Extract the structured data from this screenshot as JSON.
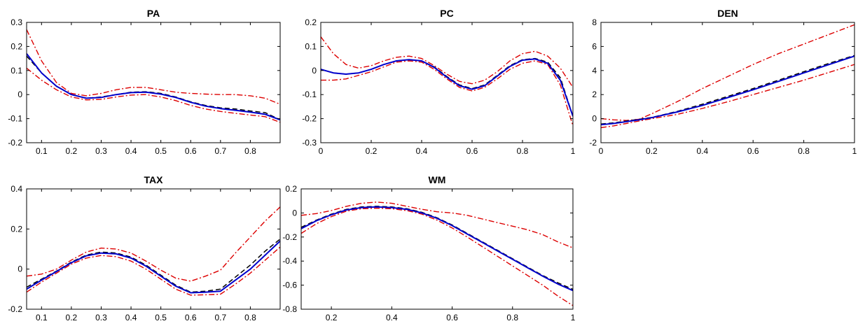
{
  "colors": {
    "estimate": "#0000cc",
    "truth": "#000000",
    "band": "#dd0000"
  },
  "chart_data": [
    {
      "type": "line",
      "title": "PA",
      "xlim": [
        0.05,
        0.9
      ],
      "ylim": [
        -0.2,
        0.3
      ],
      "xticks": [
        0.1,
        0.2,
        0.3,
        0.4,
        0.5,
        0.6,
        0.7,
        0.8
      ],
      "yticks": [
        -0.2,
        -0.1,
        0,
        0.1,
        0.2,
        0.3
      ],
      "xtick_labels": [
        "0.1",
        "0.2",
        "0.3",
        "0.4",
        "0.5",
        "0.6",
        "0.7",
        "0.8"
      ],
      "ytick_labels": [
        "-0.2",
        "-0.1",
        "0",
        "0.1",
        "0.2",
        "0.3"
      ],
      "x": [
        0.05,
        0.1,
        0.15,
        0.2,
        0.25,
        0.3,
        0.35,
        0.4,
        0.45,
        0.5,
        0.55,
        0.6,
        0.65,
        0.7,
        0.75,
        0.8,
        0.85,
        0.9
      ],
      "series": [
        {
          "style": "upper",
          "values": [
            0.27,
            0.14,
            0.05,
            0.005,
            -0.005,
            0.005,
            0.02,
            0.03,
            0.03,
            0.02,
            0.01,
            0.005,
            0.002,
            0.0,
            0.0,
            -0.005,
            -0.015,
            -0.04
          ]
        },
        {
          "style": "truth",
          "values": [
            0.16,
            0.09,
            0.035,
            0.0,
            -0.015,
            -0.01,
            0.0,
            0.01,
            0.012,
            0.005,
            -0.01,
            -0.03,
            -0.045,
            -0.055,
            -0.06,
            -0.068,
            -0.075,
            -0.105
          ]
        },
        {
          "style": "estimate",
          "values": [
            0.17,
            0.09,
            0.035,
            0.0,
            -0.015,
            -0.012,
            0.0,
            0.008,
            0.01,
            0.002,
            -0.012,
            -0.032,
            -0.048,
            -0.058,
            -0.065,
            -0.073,
            -0.082,
            -0.105
          ]
        },
        {
          "style": "lower",
          "values": [
            0.11,
            0.06,
            0.02,
            -0.01,
            -0.022,
            -0.02,
            -0.01,
            -0.002,
            0.0,
            -0.01,
            -0.025,
            -0.045,
            -0.06,
            -0.07,
            -0.078,
            -0.085,
            -0.092,
            -0.115
          ]
        }
      ]
    },
    {
      "type": "line",
      "title": "PC",
      "xlim": [
        0,
        1
      ],
      "ylim": [
        -0.3,
        0.2
      ],
      "xticks": [
        0,
        0.2,
        0.4,
        0.6,
        0.8,
        1
      ],
      "yticks": [
        -0.3,
        -0.2,
        -0.1,
        0,
        0.1,
        0.2
      ],
      "xtick_labels": [
        "0",
        "0.2",
        "0.4",
        "0.6",
        "0.8",
        "1"
      ],
      "ytick_labels": [
        "-0.3",
        "-0.2",
        "-0.1",
        "0",
        "0.1",
        "0.2"
      ],
      "x": [
        0,
        0.05,
        0.1,
        0.15,
        0.2,
        0.25,
        0.3,
        0.35,
        0.4,
        0.45,
        0.5,
        0.55,
        0.6,
        0.65,
        0.7,
        0.75,
        0.8,
        0.85,
        0.9,
        0.95,
        1.0
      ],
      "series": [
        {
          "style": "upper",
          "values": [
            0.14,
            0.07,
            0.025,
            0.01,
            0.02,
            0.04,
            0.055,
            0.06,
            0.05,
            0.02,
            -0.015,
            -0.045,
            -0.055,
            -0.04,
            -0.005,
            0.04,
            0.07,
            0.08,
            0.06,
            0.01,
            -0.07
          ]
        },
        {
          "style": "truth",
          "values": [
            0.005,
            -0.01,
            -0.015,
            -0.01,
            0.005,
            0.025,
            0.04,
            0.045,
            0.04,
            0.015,
            -0.025,
            -0.06,
            -0.075,
            -0.06,
            -0.02,
            0.02,
            0.045,
            0.05,
            0.035,
            -0.03,
            -0.19
          ]
        },
        {
          "style": "estimate",
          "values": [
            0.005,
            -0.01,
            -0.015,
            -0.01,
            0.005,
            0.025,
            0.04,
            0.045,
            0.04,
            0.013,
            -0.028,
            -0.063,
            -0.078,
            -0.063,
            -0.023,
            0.017,
            0.043,
            0.048,
            0.03,
            -0.04,
            -0.19
          ]
        },
        {
          "style": "lower",
          "values": [
            -0.04,
            -0.04,
            -0.035,
            -0.02,
            -0.005,
            0.015,
            0.035,
            0.04,
            0.035,
            0.005,
            -0.035,
            -0.07,
            -0.085,
            -0.07,
            -0.035,
            0.005,
            0.03,
            0.04,
            0.025,
            -0.06,
            -0.23
          ]
        }
      ]
    },
    {
      "type": "line",
      "title": "DEN",
      "xlim": [
        0,
        1
      ],
      "ylim": [
        -2,
        8
      ],
      "xticks": [
        0,
        0.2,
        0.4,
        0.6,
        0.8,
        1
      ],
      "yticks": [
        -2,
        0,
        2,
        4,
        6,
        8
      ],
      "xtick_labels": [
        "0",
        "0.2",
        "0.4",
        "0.6",
        "0.8",
        "1"
      ],
      "ytick_labels": [
        "-2",
        "0",
        "2",
        "4",
        "6",
        "8"
      ],
      "x": [
        0,
        0.05,
        0.1,
        0.15,
        0.2,
        0.3,
        0.4,
        0.5,
        0.6,
        0.7,
        0.8,
        0.9,
        1.0
      ],
      "series": [
        {
          "style": "upper",
          "values": [
            0.0,
            -0.1,
            -0.15,
            -0.05,
            0.4,
            1.4,
            2.5,
            3.5,
            4.5,
            5.4,
            6.2,
            7.0,
            7.8
          ]
        },
        {
          "style": "truth",
          "values": [
            -0.45,
            -0.35,
            -0.2,
            -0.05,
            0.1,
            0.6,
            1.2,
            1.85,
            2.5,
            3.2,
            3.9,
            4.6,
            5.25
          ]
        },
        {
          "style": "estimate",
          "values": [
            -0.5,
            -0.4,
            -0.25,
            -0.1,
            0.08,
            0.55,
            1.1,
            1.75,
            2.4,
            3.1,
            3.8,
            4.5,
            5.2
          ]
        },
        {
          "style": "lower",
          "values": [
            -0.75,
            -0.6,
            -0.4,
            -0.2,
            0.0,
            0.35,
            0.85,
            1.4,
            2.0,
            2.6,
            3.2,
            3.85,
            4.5
          ]
        }
      ]
    },
    {
      "type": "line",
      "title": "TAX",
      "xlim": [
        0.05,
        0.9
      ],
      "ylim": [
        -0.2,
        0.4
      ],
      "xticks": [
        0.1,
        0.2,
        0.3,
        0.4,
        0.5,
        0.6,
        0.7,
        0.8
      ],
      "yticks": [
        -0.2,
        0,
        0.2,
        0.4
      ],
      "xtick_labels": [
        "0.1",
        "0.2",
        "0.3",
        "0.4",
        "0.5",
        "0.6",
        "0.7",
        "0.8"
      ],
      "ytick_labels": [
        "-0.2",
        "0",
        "0.2",
        "0.4"
      ],
      "x": [
        0.05,
        0.1,
        0.15,
        0.2,
        0.25,
        0.3,
        0.35,
        0.4,
        0.45,
        0.5,
        0.55,
        0.6,
        0.65,
        0.7,
        0.75,
        0.8,
        0.85,
        0.9
      ],
      "series": [
        {
          "style": "upper",
          "values": [
            -0.035,
            -0.025,
            0.0,
            0.045,
            0.085,
            0.105,
            0.1,
            0.08,
            0.04,
            -0.005,
            -0.045,
            -0.06,
            -0.035,
            -0.005,
            0.08,
            0.16,
            0.24,
            0.31
          ]
        },
        {
          "style": "truth",
          "values": [
            -0.09,
            -0.05,
            -0.01,
            0.035,
            0.07,
            0.085,
            0.08,
            0.06,
            0.02,
            -0.03,
            -0.08,
            -0.115,
            -0.11,
            -0.1,
            -0.04,
            0.02,
            0.09,
            0.15
          ]
        },
        {
          "style": "estimate",
          "values": [
            -0.1,
            -0.055,
            -0.012,
            0.032,
            0.066,
            0.08,
            0.076,
            0.055,
            0.015,
            -0.035,
            -0.085,
            -0.118,
            -0.115,
            -0.11,
            -0.055,
            0.0,
            0.07,
            0.14
          ]
        },
        {
          "style": "lower",
          "values": [
            -0.115,
            -0.065,
            -0.02,
            0.025,
            0.055,
            0.068,
            0.062,
            0.04,
            0.0,
            -0.05,
            -0.1,
            -0.13,
            -0.128,
            -0.125,
            -0.075,
            -0.02,
            0.045,
            0.11
          ]
        }
      ]
    },
    {
      "type": "line",
      "title": "WM",
      "xlim": [
        0.1,
        1
      ],
      "ylim": [
        -0.8,
        0.2
      ],
      "xticks": [
        0.2,
        0.4,
        0.6,
        0.8,
        1
      ],
      "yticks": [
        -0.8,
        -0.6,
        -0.4,
        -0.2,
        0,
        0.2
      ],
      "xtick_labels": [
        "0.2",
        "0.4",
        "0.6",
        "0.8",
        "1"
      ],
      "ytick_labels": [
        "-0.8",
        "-0.6",
        "-0.4",
        "-0.2",
        "0",
        "0.2"
      ],
      "x": [
        0.1,
        0.15,
        0.2,
        0.25,
        0.3,
        0.35,
        0.4,
        0.45,
        0.5,
        0.55,
        0.6,
        0.65,
        0.7,
        0.75,
        0.8,
        0.85,
        0.9,
        0.95,
        1.0
      ],
      "series": [
        {
          "style": "upper",
          "values": [
            -0.02,
            -0.005,
            0.02,
            0.055,
            0.08,
            0.09,
            0.08,
            0.055,
            0.03,
            0.01,
            0.0,
            -0.02,
            -0.05,
            -0.08,
            -0.11,
            -0.14,
            -0.18,
            -0.24,
            -0.29
          ]
        },
        {
          "style": "truth",
          "values": [
            -0.12,
            -0.06,
            -0.01,
            0.03,
            0.05,
            0.055,
            0.05,
            0.035,
            0.005,
            -0.04,
            -0.1,
            -0.17,
            -0.24,
            -0.31,
            -0.38,
            -0.45,
            -0.52,
            -0.58,
            -0.635
          ]
        },
        {
          "style": "estimate",
          "values": [
            -0.13,
            -0.065,
            -0.015,
            0.025,
            0.045,
            0.05,
            0.045,
            0.03,
            0.0,
            -0.045,
            -0.105,
            -0.175,
            -0.245,
            -0.315,
            -0.385,
            -0.455,
            -0.525,
            -0.59,
            -0.645
          ]
        },
        {
          "style": "lower",
          "values": [
            -0.17,
            -0.09,
            -0.03,
            0.015,
            0.035,
            0.04,
            0.035,
            0.02,
            -0.01,
            -0.06,
            -0.125,
            -0.2,
            -0.28,
            -0.36,
            -0.44,
            -0.52,
            -0.6,
            -0.69,
            -0.77
          ]
        }
      ]
    }
  ]
}
